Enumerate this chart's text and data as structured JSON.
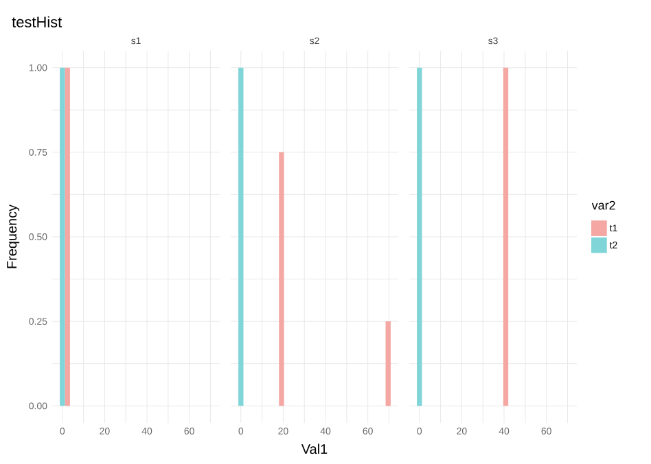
{
  "chart_data": [
    {
      "type": "histogram",
      "title": "testHist",
      "subtitle": "s1",
      "ylabel": "Frequency",
      "grid": true,
      "bins": [
        -1.2,
        1.2,
        3.6,
        6,
        8.4,
        10.8,
        13.2,
        15.6,
        18,
        20.4,
        22.8,
        25.2,
        27.6,
        30,
        32.4,
        34.8,
        37.2,
        39.6,
        42,
        44.4,
        46.8,
        49.2,
        51.6,
        54,
        56.4,
        58.8,
        61.2,
        63.6,
        66,
        68.4,
        70.8
      ],
      "series": [
        {
          "color": "#f4a7a3",
          "values": [
            0,
            1,
            0,
            0,
            0,
            0,
            0,
            0,
            0,
            0,
            0,
            0,
            0,
            0,
            0,
            0,
            0,
            0,
            0,
            0,
            0,
            0,
            0,
            0,
            0,
            0,
            0,
            0,
            0,
            0
          ]
        },
        {
          "color": "#80d5d8",
          "values": [
            1,
            0,
            0,
            0,
            0,
            0,
            0,
            0,
            0,
            0,
            0,
            0,
            0,
            0,
            0,
            0,
            0,
            0,
            0,
            0,
            0,
            0,
            0,
            0,
            0,
            0,
            0,
            0,
            0,
            0
          ]
        }
      ],
      "xlim": [
        -4.8,
        74.4
      ],
      "xticks": [
        0,
        {
          "value": 10,
          "label": null
        },
        20,
        {
          "value": 30,
          "label": null
        },
        40,
        {
          "value": 50,
          "label": null
        },
        60,
        {
          "value": 70,
          "label": null
        }
      ],
      "ylim": [
        -0.05,
        1.05
      ],
      "yticks": [
        {
          "value": 0,
          "label": "0.00"
        },
        {
          "value": 0.125,
          "label": null
        },
        {
          "value": 0.25,
          "label": "0.25"
        },
        {
          "value": 0.375,
          "label": null
        },
        {
          "value": 0.5,
          "label": "0.50"
        },
        {
          "value": 0.625,
          "label": null
        },
        {
          "value": 0.75,
          "label": "0.75"
        },
        {
          "value": 0.875,
          "label": null
        },
        {
          "value": 1,
          "label": "1.00"
        }
      ]
    },
    {
      "type": "histogram",
      "subtitle": "s2",
      "xlabel": "Val1",
      "grid": true,
      "tick_labels": "x",
      "yticks": [
        {
          "value": 0,
          "label": null
        },
        {
          "value": 0.125,
          "label": null
        },
        {
          "value": 0.25,
          "label": null
        },
        {
          "value": 0.375,
          "label": null
        },
        {
          "value": 0.5,
          "label": null
        },
        {
          "value": 0.625,
          "label": null
        },
        {
          "value": 0.75,
          "label": null
        },
        {
          "value": 0.875,
          "label": null
        },
        {
          "value": 1,
          "label": null
        }
      ],
      "bins": [
        -1.2,
        1.2,
        3.6,
        6,
        8.4,
        10.8,
        13.2,
        15.6,
        18,
        20.4,
        22.8,
        25.2,
        27.6,
        30,
        32.4,
        34.8,
        37.2,
        39.6,
        42,
        44.4,
        46.8,
        49.2,
        51.6,
        54,
        56.4,
        58.8,
        61.2,
        63.6,
        66,
        68.4,
        70.8
      ],
      "series": [
        {
          "color": "#f4a7a3",
          "values": [
            0,
            0,
            0,
            0,
            0,
            0,
            0,
            0,
            0.75,
            0,
            0,
            0,
            0,
            0,
            0,
            0,
            0,
            0,
            0,
            0,
            0,
            0,
            0,
            0,
            0,
            0,
            0,
            0,
            0,
            0.25
          ]
        },
        {
          "color": "#80d5d8",
          "values": [
            1,
            0,
            0,
            0,
            0,
            0,
            0,
            0,
            0,
            0,
            0,
            0,
            0,
            0,
            0,
            0,
            0,
            0,
            0,
            0,
            0,
            0,
            0,
            0,
            0,
            0,
            0,
            0,
            0,
            0
          ]
        }
      ],
      "xlim": [
        -4.8,
        74.4
      ],
      "xticks": [
        0,
        {
          "value": 10,
          "label": null
        },
        20,
        {
          "value": 30,
          "label": null
        },
        40,
        {
          "value": 50,
          "label": null
        },
        60,
        {
          "value": 70,
          "label": null
        }
      ],
      "ylim": [
        -0.05,
        1.05
      ]
    },
    {
      "type": "histogram",
      "subtitle": "s3",
      "grid": true,
      "tick_labels": "x",
      "legend": "right",
      "legend_title": "var2",
      "yticks": [
        {
          "value": 0,
          "label": null
        },
        {
          "value": 0.125,
          "label": null
        },
        {
          "value": 0.25,
          "label": null
        },
        {
          "value": 0.375,
          "label": null
        },
        {
          "value": 0.5,
          "label": null
        },
        {
          "value": 0.625,
          "label": null
        },
        {
          "value": 0.75,
          "label": null
        },
        {
          "value": 0.875,
          "label": null
        },
        {
          "value": 1,
          "label": null
        }
      ],
      "bins": [
        -1.2,
        1.2,
        3.6,
        6,
        8.4,
        10.8,
        13.2,
        15.6,
        18,
        20.4,
        22.8,
        25.2,
        27.6,
        30,
        32.4,
        34.8,
        37.2,
        39.6,
        42,
        44.4,
        46.8,
        49.2,
        51.6,
        54,
        56.4,
        58.8,
        61.2,
        63.6,
        66,
        68.4,
        70.8
      ],
      "series": [
        {
          "name": "t1",
          "color": "#f4a7a3",
          "values": [
            0,
            0,
            0,
            0,
            0,
            0,
            0,
            0,
            0,
            0,
            0,
            0,
            0,
            0,
            0,
            0,
            0,
            1,
            0,
            0,
            0,
            0,
            0,
            0,
            0,
            0,
            0,
            0,
            0,
            0
          ]
        },
        {
          "name": "t2",
          "color": "#80d5d8",
          "values": [
            1,
            0,
            0,
            0,
            0,
            0,
            0,
            0,
            0,
            0,
            0,
            0,
            0,
            0,
            0,
            0,
            0,
            0,
            0,
            0,
            0,
            0,
            0,
            0,
            0,
            0,
            0,
            0,
            0,
            0
          ]
        }
      ],
      "xlim": [
        -4.8,
        74.4
      ],
      "xticks": [
        0,
        {
          "value": 10,
          "label": null
        },
        20,
        {
          "value": 30,
          "label": null
        },
        40,
        {
          "value": 50,
          "label": null
        },
        60,
        {
          "value": 70,
          "label": null
        }
      ],
      "ylim": [
        -0.05,
        1.05
      ]
    }
  ]
}
